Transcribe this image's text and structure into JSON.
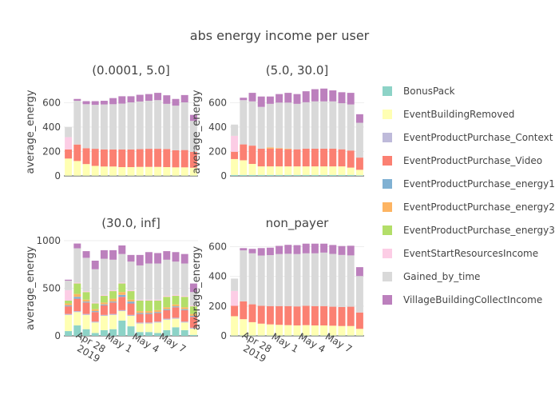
{
  "chart_data": {
    "type": "bar",
    "title": "abs energy income per user",
    "ylabel": "average_energy",
    "barmode": "stack",
    "x": [
      "2019-04-24",
      "2019-04-25",
      "2019-04-26",
      "2019-04-27",
      "2019-04-28",
      "2019-04-29",
      "2019-04-30",
      "2019-05-01",
      "2019-05-02",
      "2019-05-03",
      "2019-05-04",
      "2019-05-05",
      "2019-05-06",
      "2019-05-07",
      "2019-05-08"
    ],
    "xtick_labels": [
      {
        "date": "2019-04-28",
        "line1": "Apr 28",
        "line2": "2019"
      },
      {
        "date": "2019-05-01",
        "line1": "May 1",
        "line2": ""
      },
      {
        "date": "2019-05-04",
        "line1": "May 4",
        "line2": ""
      },
      {
        "date": "2019-05-07",
        "line1": "May 7",
        "line2": ""
      }
    ],
    "legend": {
      "placement": "right",
      "series": [
        {
          "name": "BonusPack",
          "color": "#8dd3c7"
        },
        {
          "name": "EventBuildingRemoved",
          "color": "#ffffb3"
        },
        {
          "name": "EventProductPurchase_Context",
          "color": "#bebada"
        },
        {
          "name": "EventProductPurchase_Video",
          "color": "#fb8072"
        },
        {
          "name": "EventProductPurchase_energy1",
          "color": "#80b1d3"
        },
        {
          "name": "EventProductPurchase_energy2",
          "color": "#fdb462"
        },
        {
          "name": "EventProductPurchase_energy3",
          "color": "#b3de69"
        },
        {
          "name": "EventStartResourcesIncome",
          "color": "#fccde5"
        },
        {
          "name": "Gained_by_time",
          "color": "#d9d9d9"
        },
        {
          "name": "VillageBuildingCollectIncome",
          "color": "#bc80bd"
        }
      ]
    },
    "panels": [
      {
        "title": "(0.0001, 5.0]",
        "ylim": [
          0,
          720
        ],
        "yticks": [
          0,
          200,
          400,
          600
        ],
        "show_xticks": false,
        "series": {
          "BonusPack": [
            2,
            2,
            2,
            2,
            2,
            2,
            2,
            2,
            2,
            2,
            2,
            2,
            2,
            2,
            2
          ],
          "EventBuildingRemoved": [
            140,
            120,
            95,
            80,
            75,
            75,
            70,
            70,
            72,
            72,
            72,
            70,
            68,
            68,
            65
          ],
          "EventProductPurchase_Context": [
            0,
            0,
            0,
            0,
            0,
            0,
            0,
            0,
            0,
            0,
            0,
            0,
            0,
            0,
            0
          ],
          "EventProductPurchase_Video": [
            75,
            135,
            130,
            140,
            140,
            140,
            145,
            145,
            145,
            148,
            148,
            148,
            140,
            142,
            130
          ],
          "EventProductPurchase_energy1": [
            0,
            0,
            0,
            0,
            0,
            0,
            0,
            0,
            0,
            0,
            0,
            0,
            0,
            0,
            0
          ],
          "EventProductPurchase_energy2": [
            0,
            0,
            0,
            0,
            0,
            0,
            0,
            0,
            0,
            0,
            0,
            0,
            0,
            0,
            0
          ],
          "EventProductPurchase_energy3": [
            0,
            0,
            0,
            0,
            0,
            0,
            0,
            0,
            0,
            0,
            0,
            0,
            0,
            0,
            0
          ],
          "EventStartResourcesIncome": [
            100,
            0,
            0,
            0,
            0,
            0,
            0,
            0,
            0,
            0,
            0,
            0,
            0,
            0,
            0
          ],
          "Gained_by_time": [
            83,
            358,
            360,
            360,
            368,
            370,
            375,
            385,
            390,
            393,
            398,
            370,
            365,
            390,
            253
          ],
          "VillageBuildingCollectIncome": [
            0,
            15,
            25,
            30,
            30,
            50,
            60,
            50,
            55,
            55,
            60,
            70,
            55,
            60,
            50
          ]
        }
      },
      {
        "title": "(5.0, 30.0]",
        "ylim": [
          0,
          720
        ],
        "yticks": [
          0,
          200,
          400,
          600
        ],
        "show_xticks": false,
        "series": {
          "BonusPack": [
            8,
            8,
            8,
            8,
            8,
            8,
            8,
            8,
            8,
            8,
            8,
            8,
            8,
            8,
            5
          ],
          "EventBuildingRemoved": [
            130,
            120,
            90,
            70,
            70,
            70,
            70,
            70,
            70,
            70,
            70,
            70,
            70,
            60,
            45
          ],
          "EventProductPurchase_Context": [
            0,
            0,
            0,
            0,
            0,
            0,
            0,
            0,
            0,
            0,
            0,
            0,
            0,
            0,
            0
          ],
          "EventProductPurchase_Video": [
            60,
            130,
            150,
            145,
            145,
            145,
            140,
            140,
            145,
            145,
            145,
            145,
            140,
            140,
            100
          ],
          "EventProductPurchase_energy1": [
            0,
            0,
            0,
            0,
            0,
            0,
            0,
            0,
            0,
            0,
            0,
            0,
            0,
            0,
            0
          ],
          "EventProductPurchase_energy2": [
            0,
            0,
            0,
            0,
            10,
            5,
            5,
            0,
            0,
            0,
            0,
            0,
            0,
            0,
            0
          ],
          "EventProductPurchase_energy3": [
            0,
            0,
            0,
            0,
            0,
            0,
            0,
            0,
            0,
            0,
            0,
            0,
            0,
            0,
            0
          ],
          "EventStartResourcesIncome": [
            130,
            0,
            0,
            0,
            0,
            0,
            0,
            0,
            0,
            0,
            0,
            0,
            0,
            0,
            0
          ],
          "Gained_by_time": [
            92,
            362,
            362,
            342,
            357,
            372,
            377,
            372,
            380,
            387,
            387,
            387,
            377,
            377,
            285
          ],
          "VillageBuildingCollectIncome": [
            0,
            20,
            70,
            85,
            60,
            70,
            80,
            80,
            90,
            100,
            105,
            90,
            90,
            95,
            70
          ]
        }
      },
      {
        "title": "(30.0, inf]",
        "ylim": [
          0,
          1000
        ],
        "yticks": [
          0,
          500,
          1000
        ],
        "show_xticks": true,
        "series": {
          "BonusPack": [
            50,
            110,
            70,
            30,
            60,
            70,
            160,
            100,
            40,
            40,
            30,
            60,
            90,
            60,
            10
          ],
          "EventBuildingRemoved": [
            170,
            140,
            150,
            110,
            150,
            150,
            100,
            110,
            90,
            90,
            110,
            110,
            90,
            80,
            65
          ],
          "EventProductPurchase_Context": [
            10,
            10,
            10,
            10,
            10,
            10,
            10,
            10,
            10,
            10,
            10,
            10,
            10,
            10,
            10
          ],
          "EventProductPurchase_Video": [
            80,
            130,
            120,
            100,
            100,
            120,
            140,
            120,
            90,
            90,
            90,
            90,
            110,
            120,
            115
          ],
          "EventProductPurchase_energy1": [
            10,
            20,
            10,
            10,
            10,
            10,
            20,
            20,
            10,
            10,
            10,
            10,
            10,
            10,
            10
          ],
          "EventProductPurchase_energy2": [
            20,
            30,
            20,
            20,
            20,
            30,
            30,
            20,
            20,
            20,
            20,
            20,
            20,
            20,
            20
          ],
          "EventProductPurchase_energy3": [
            30,
            110,
            80,
            60,
            70,
            80,
            90,
            90,
            110,
            110,
            100,
            110,
            90,
            110,
            80
          ],
          "EventStartResourcesIncome": [
            110,
            10,
            10,
            10,
            10,
            10,
            10,
            10,
            10,
            10,
            10,
            10,
            10,
            10,
            10
          ],
          "Gained_by_time": [
            100,
            360,
            350,
            350,
            380,
            320,
            300,
            300,
            360,
            380,
            380,
            380,
            350,
            340,
            140
          ],
          "VillageBuildingCollectIncome": [
            10,
            50,
            70,
            90,
            90,
            100,
            90,
            70,
            110,
            120,
            110,
            90,
            100,
            100,
            90
          ]
        }
      },
      {
        "title": "non_payer",
        "ylim": [
          0,
          640
        ],
        "yticks": [
          0,
          200,
          400,
          600
        ],
        "show_xticks": true,
        "series": {
          "BonusPack": [
            2,
            2,
            2,
            2,
            2,
            2,
            2,
            2,
            2,
            2,
            2,
            2,
            2,
            2,
            2
          ],
          "EventBuildingRemoved": [
            130,
            110,
            90,
            80,
            75,
            72,
            70,
            68,
            70,
            68,
            68,
            66,
            64,
            64,
            45
          ],
          "EventProductPurchase_Context": [
            0,
            0,
            0,
            0,
            0,
            0,
            0,
            0,
            0,
            0,
            0,
            0,
            0,
            0,
            0
          ],
          "EventProductPurchase_Video": [
            70,
            120,
            120,
            120,
            123,
            126,
            128,
            128,
            130,
            130,
            130,
            128,
            128,
            130,
            110
          ],
          "EventProductPurchase_energy1": [
            0,
            0,
            0,
            0,
            0,
            0,
            0,
            0,
            0,
            0,
            0,
            0,
            0,
            0,
            0
          ],
          "EventProductPurchase_energy2": [
            0,
            0,
            0,
            0,
            0,
            0,
            0,
            0,
            0,
            0,
            0,
            0,
            0,
            0,
            0
          ],
          "EventProductPurchase_energy3": [
            0,
            0,
            0,
            0,
            0,
            0,
            0,
            0,
            0,
            0,
            0,
            0,
            0,
            0,
            0
          ],
          "EventStartResourcesIncome": [
            100,
            0,
            0,
            0,
            0,
            0,
            0,
            0,
            0,
            0,
            0,
            0,
            0,
            0,
            0
          ],
          "Gained_by_time": [
            83,
            343,
            343,
            338,
            343,
            350,
            352,
            352,
            353,
            355,
            360,
            355,
            350,
            345,
            245
          ],
          "VillageBuildingCollectIncome": [
            0,
            15,
            30,
            50,
            50,
            55,
            60,
            60,
            65,
            65,
            60,
            60,
            60,
            65,
            60
          ]
        }
      }
    ]
  }
}
